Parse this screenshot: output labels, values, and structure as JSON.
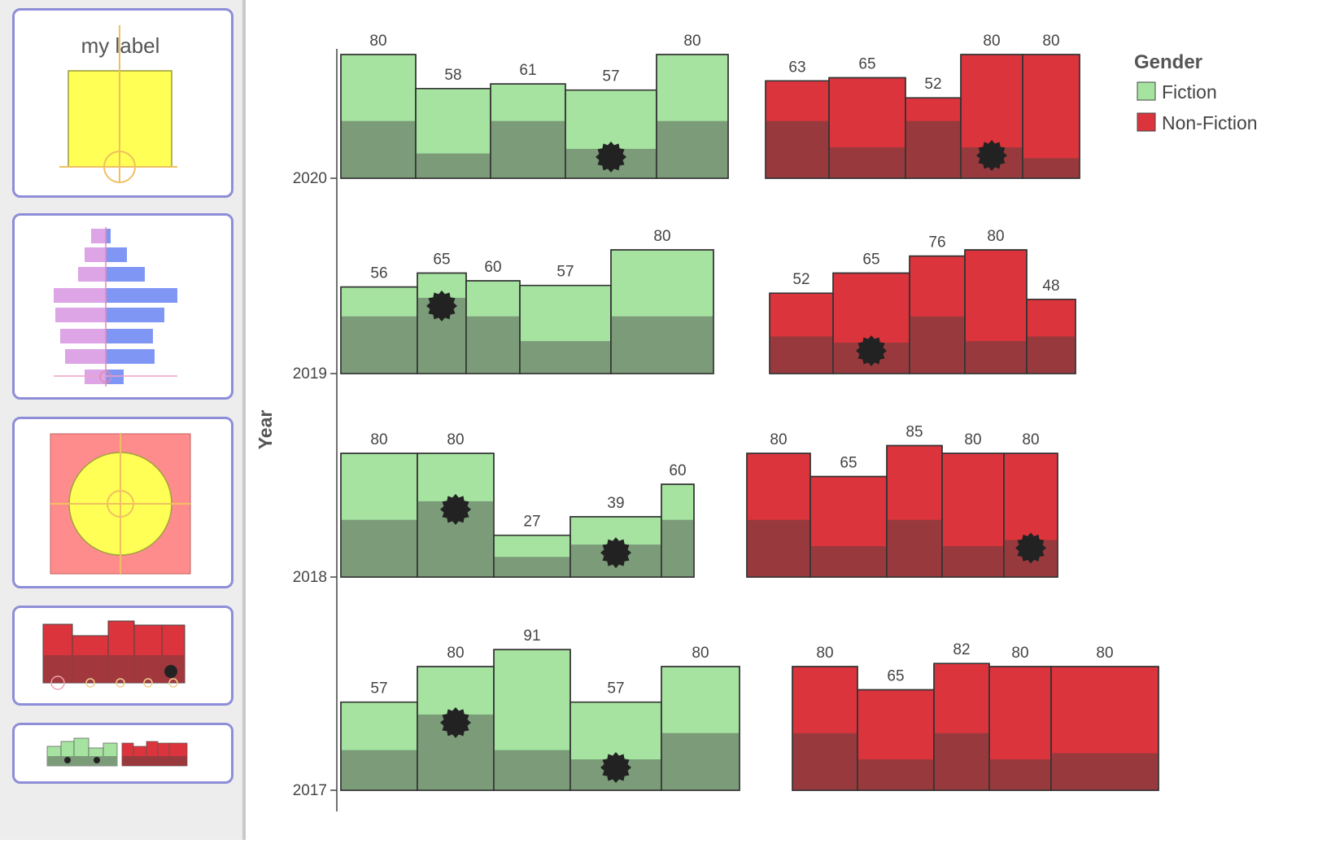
{
  "sidebar": {
    "thumbnails": [
      {
        "name": "label-glyph",
        "label": "my label"
      },
      {
        "name": "pyramid-glyph"
      },
      {
        "name": "circle-glyph"
      },
      {
        "name": "bars-glyph"
      },
      {
        "name": "overview-glyph"
      }
    ]
  },
  "colors": {
    "fiction": "#a6e3a1",
    "fiction_dark": "#7b9b79",
    "nonfiction": "#dc343c",
    "nonfiction_dark": "#983a3d",
    "stroke": "#333333",
    "marker": "#222222"
  },
  "chart_data": {
    "type": "bar",
    "ylabel": "Year",
    "legend": {
      "title": "Gender",
      "position": "top-right",
      "entries": [
        "Fiction",
        "Non-Fiction"
      ]
    },
    "rows": [
      {
        "year": "2020",
        "groups": [
          {
            "series": "Fiction",
            "bars": [
              {
                "value": 80,
                "inner": 37,
                "marked": false
              },
              {
                "value": 58,
                "inner": 16,
                "marked": false
              },
              {
                "value": 61,
                "inner": 37,
                "marked": false
              },
              {
                "value": 57,
                "inner": 19,
                "marked": true
              },
              {
                "value": 80,
                "inner": 37,
                "marked": false
              }
            ]
          },
          {
            "series": "Non-Fiction",
            "bars": [
              {
                "value": 63,
                "inner": 37,
                "marked": false
              },
              {
                "value": 65,
                "inner": 20,
                "marked": false
              },
              {
                "value": 52,
                "inner": 37,
                "marked": false
              },
              {
                "value": 80,
                "inner": 20,
                "marked": true
              },
              {
                "value": 80,
                "inner": 13,
                "marked": false
              }
            ]
          }
        ]
      },
      {
        "year": "2019",
        "groups": [
          {
            "series": "Fiction",
            "bars": [
              {
                "value": 56,
                "inner": 37,
                "marked": false
              },
              {
                "value": 65,
                "inner": 49,
                "marked": true
              },
              {
                "value": 60,
                "inner": 37,
                "marked": false
              },
              {
                "value": 57,
                "inner": 21,
                "marked": false
              },
              {
                "value": 80,
                "inner": 37,
                "marked": false
              }
            ]
          },
          {
            "series": "Non-Fiction",
            "bars": [
              {
                "value": 52,
                "inner": 24,
                "marked": false
              },
              {
                "value": 65,
                "inner": 20,
                "marked": true
              },
              {
                "value": 76,
                "inner": 37,
                "marked": false
              },
              {
                "value": 80,
                "inner": 21,
                "marked": false
              },
              {
                "value": 48,
                "inner": 24,
                "marked": false
              }
            ]
          }
        ]
      },
      {
        "year": "2018",
        "groups": [
          {
            "series": "Fiction",
            "bars": [
              {
                "value": 80,
                "inner": 37,
                "marked": false
              },
              {
                "value": 80,
                "inner": 49,
                "marked": true
              },
              {
                "value": 27,
                "inner": 13,
                "marked": false
              },
              {
                "value": 39,
                "inner": 21,
                "marked": true
              },
              {
                "value": 60,
                "inner": 37,
                "marked": false
              }
            ]
          },
          {
            "series": "Non-Fiction",
            "bars": [
              {
                "value": 80,
                "inner": 37,
                "marked": false
              },
              {
                "value": 65,
                "inner": 20,
                "marked": false
              },
              {
                "value": 85,
                "inner": 37,
                "marked": false
              },
              {
                "value": 80,
                "inner": 20,
                "marked": false
              },
              {
                "value": 80,
                "inner": 24,
                "marked": true
              }
            ]
          }
        ]
      },
      {
        "year": "2017",
        "groups": [
          {
            "series": "Fiction",
            "bars": [
              {
                "value": 57,
                "inner": 26,
                "marked": false
              },
              {
                "value": 80,
                "inner": 49,
                "marked": true
              },
              {
                "value": 91,
                "inner": 26,
                "marked": false
              },
              {
                "value": 57,
                "inner": 20,
                "marked": true
              },
              {
                "value": 80,
                "inner": 37,
                "marked": false
              }
            ]
          },
          {
            "series": "Non-Fiction",
            "bars": [
              {
                "value": 80,
                "inner": 37,
                "marked": false
              },
              {
                "value": 65,
                "inner": 20,
                "marked": false
              },
              {
                "value": 82,
                "inner": 37,
                "marked": false
              },
              {
                "value": 80,
                "inner": 20,
                "marked": false
              },
              {
                "value": 80,
                "inner": 24,
                "marked": false
              }
            ]
          }
        ]
      }
    ]
  }
}
